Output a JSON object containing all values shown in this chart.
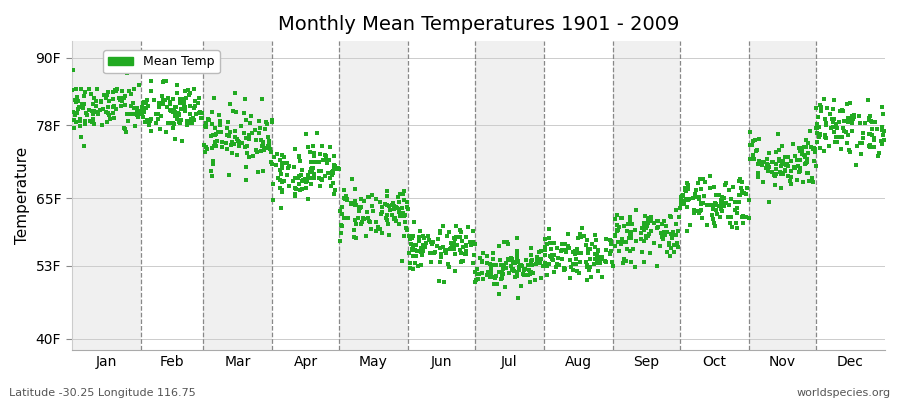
{
  "title": "Monthly Mean Temperatures 1901 - 2009",
  "ylabel": "Temperature",
  "month_labels": [
    "Jan",
    "Feb",
    "Mar",
    "Apr",
    "May",
    "Jun",
    "Jul",
    "Aug",
    "Sep",
    "Oct",
    "Nov",
    "Dec"
  ],
  "month_days": [
    31,
    28,
    31,
    30,
    31,
    30,
    31,
    31,
    30,
    31,
    30,
    31
  ],
  "ytick_values": [
    40,
    53,
    65,
    78,
    90
  ],
  "ytick_labels": [
    "40F",
    "53F",
    "65F",
    "78F",
    "90F"
  ],
  "ylim": [
    38,
    93
  ],
  "dot_color": "#22aa22",
  "dot_size": 7,
  "bg_color": "#ffffff",
  "plot_bg_even": "#f0f0f0",
  "plot_bg_odd": "#ffffff",
  "legend_label": "Mean Temp",
  "footer_left": "Latitude -30.25 Longitude 116.75",
  "footer_right": "worldspecies.org",
  "monthly_means_f": [
    81.0,
    80.5,
    76.0,
    70.0,
    62.5,
    56.0,
    53.0,
    54.5,
    58.5,
    64.5,
    71.5,
    77.5
  ],
  "monthly_stds_f": [
    2.5,
    2.5,
    2.8,
    2.5,
    2.5,
    2.0,
    2.0,
    2.0,
    2.5,
    2.5,
    2.5,
    2.5
  ],
  "n_years": 109,
  "title_fontsize": 14,
  "axis_fontsize": 10,
  "footer_fontsize": 8
}
